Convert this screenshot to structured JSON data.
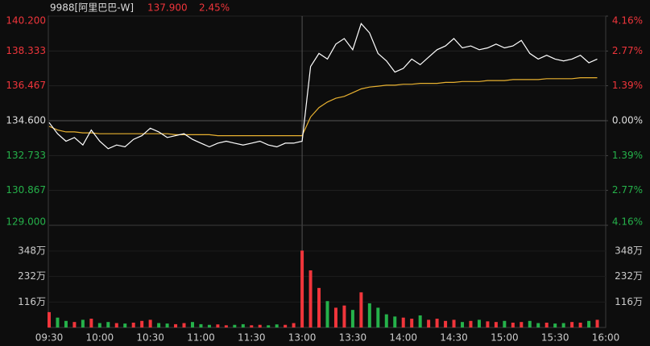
{
  "header": {
    "code": "9988[阿里巴巴-W]",
    "price": "137.900",
    "change": "2.45%"
  },
  "chart_data": [
    {
      "type": "line",
      "x": [
        "09:30",
        "09:35",
        "09:40",
        "09:45",
        "09:50",
        "09:55",
        "10:00",
        "10:05",
        "10:10",
        "10:15",
        "10:20",
        "10:25",
        "10:30",
        "10:35",
        "10:40",
        "10:45",
        "10:50",
        "10:55",
        "11:00",
        "11:05",
        "11:10",
        "11:15",
        "11:20",
        "11:25",
        "11:30",
        "11:35",
        "11:40",
        "11:45",
        "11:50",
        "11:55",
        "13:00",
        "13:05",
        "13:10",
        "13:15",
        "13:20",
        "13:25",
        "13:30",
        "13:35",
        "13:40",
        "13:45",
        "13:50",
        "13:55",
        "14:00",
        "14:05",
        "14:10",
        "14:15",
        "14:20",
        "14:25",
        "14:30",
        "14:35",
        "14:40",
        "14:45",
        "14:50",
        "14:55",
        "15:00",
        "15:05",
        "15:10",
        "15:15",
        "15:20",
        "15:25",
        "15:30",
        "15:35",
        "15:40",
        "15:45",
        "15:50",
        "15:55"
      ],
      "series": [
        {
          "color": "#ffffff",
          "values": [
            134.5,
            133.9,
            133.5,
            133.7,
            133.3,
            134.1,
            133.5,
            133.1,
            133.3,
            133.2,
            133.6,
            133.8,
            134.2,
            134.0,
            133.7,
            133.8,
            133.9,
            133.6,
            133.4,
            133.2,
            133.4,
            133.5,
            133.4,
            133.3,
            133.4,
            133.5,
            133.3,
            133.2,
            133.4,
            133.4,
            133.5,
            137.5,
            138.2,
            137.9,
            138.7,
            139.0,
            138.4,
            139.8,
            139.3,
            138.2,
            137.8,
            137.2,
            137.4,
            137.9,
            137.6,
            138.0,
            138.4,
            138.6,
            139.0,
            138.5,
            138.6,
            138.4,
            138.5,
            138.7,
            138.5,
            138.6,
            138.9,
            138.2,
            137.9,
            138.1,
            137.9,
            137.8,
            137.9,
            138.1,
            137.7,
            137.9
          ]
        },
        {
          "color": "#e8b130",
          "values": [
            134.3,
            134.1,
            134.0,
            134.0,
            133.95,
            133.95,
            133.9,
            133.9,
            133.9,
            133.9,
            133.9,
            133.9,
            133.9,
            133.9,
            133.9,
            133.85,
            133.85,
            133.85,
            133.85,
            133.85,
            133.8,
            133.8,
            133.8,
            133.8,
            133.8,
            133.8,
            133.8,
            133.8,
            133.8,
            133.8,
            133.8,
            134.8,
            135.3,
            135.6,
            135.8,
            135.9,
            136.1,
            136.3,
            136.4,
            136.45,
            136.5,
            136.5,
            136.55,
            136.55,
            136.6,
            136.6,
            136.6,
            136.65,
            136.65,
            136.7,
            136.7,
            136.7,
            136.75,
            136.75,
            136.75,
            136.8,
            136.8,
            136.8,
            136.8,
            136.85,
            136.85,
            136.85,
            136.85,
            136.9,
            136.9,
            136.9
          ]
        }
      ],
      "ylim": [
        129.0,
        140.2
      ],
      "yticks": [
        {
          "value": 140.2,
          "label": "140.200"
        },
        {
          "value": 138.333,
          "label": "138.333"
        },
        {
          "value": 136.467,
          "label": "136.467"
        },
        {
          "value": 134.6,
          "label": "134.600"
        },
        {
          "value": 132.733,
          "label": "132.733"
        },
        {
          "value": 130.867,
          "label": "130.867"
        },
        {
          "value": 129.0,
          "label": "129.000"
        }
      ],
      "y2lim": [
        -4.16,
        4.16
      ],
      "y2ticks": [
        {
          "value": 4.16,
          "label": "4.16%"
        },
        {
          "value": 2.77,
          "label": "2.77%"
        },
        {
          "value": 1.39,
          "label": "1.39%"
        },
        {
          "value": 0,
          "label": "0.00%"
        },
        {
          "value": -1.39,
          "label": "1.39%"
        },
        {
          "value": -2.77,
          "label": "2.77%"
        },
        {
          "value": -4.16,
          "label": "4.16%"
        }
      ],
      "up_color": "#f0353b",
      "down_color": "#25b14a",
      "flat_color": "#dddddd"
    },
    {
      "type": "bar",
      "x": [
        "09:30",
        "09:35",
        "09:40",
        "09:45",
        "09:50",
        "09:55",
        "10:00",
        "10:05",
        "10:10",
        "10:15",
        "10:20",
        "10:25",
        "10:30",
        "10:35",
        "10:40",
        "10:45",
        "10:50",
        "10:55",
        "11:00",
        "11:05",
        "11:10",
        "11:15",
        "11:20",
        "11:25",
        "11:30",
        "11:35",
        "11:40",
        "11:45",
        "11:50",
        "11:55",
        "13:00",
        "13:05",
        "13:10",
        "13:15",
        "13:20",
        "13:25",
        "13:30",
        "13:35",
        "13:40",
        "13:45",
        "13:50",
        "13:55",
        "14:00",
        "14:05",
        "14:10",
        "14:15",
        "14:20",
        "14:25",
        "14:30",
        "14:35",
        "14:40",
        "14:45",
        "14:50",
        "14:55",
        "15:00",
        "15:05",
        "15:10",
        "15:15",
        "15:20",
        "15:25",
        "15:30",
        "15:35",
        "15:40",
        "15:45",
        "15:50",
        "15:55"
      ],
      "values": [
        70,
        45,
        30,
        25,
        35,
        40,
        20,
        25,
        20,
        18,
        22,
        30,
        35,
        20,
        18,
        15,
        20,
        25,
        15,
        12,
        14,
        10,
        12,
        15,
        10,
        12,
        10,
        14,
        12,
        20,
        350,
        260,
        180,
        120,
        90,
        100,
        80,
        160,
        110,
        90,
        60,
        50,
        45,
        40,
        55,
        35,
        40,
        30,
        35,
        25,
        30,
        35,
        28,
        25,
        30,
        22,
        25,
        30,
        20,
        22,
        18,
        20,
        25,
        22,
        30,
        35
      ],
      "ylim": [
        0,
        465
      ],
      "yticks": [
        {
          "value": 348,
          "label": "348万"
        },
        {
          "value": 232,
          "label": "232万"
        },
        {
          "value": 116,
          "label": "116万"
        }
      ],
      "xticks": [
        "09:30",
        "10:00",
        "10:30",
        "11:00",
        "11:30",
        "13:00",
        "13:30",
        "14:00",
        "14:30",
        "15:00",
        "15:30",
        "16:00"
      ]
    }
  ]
}
